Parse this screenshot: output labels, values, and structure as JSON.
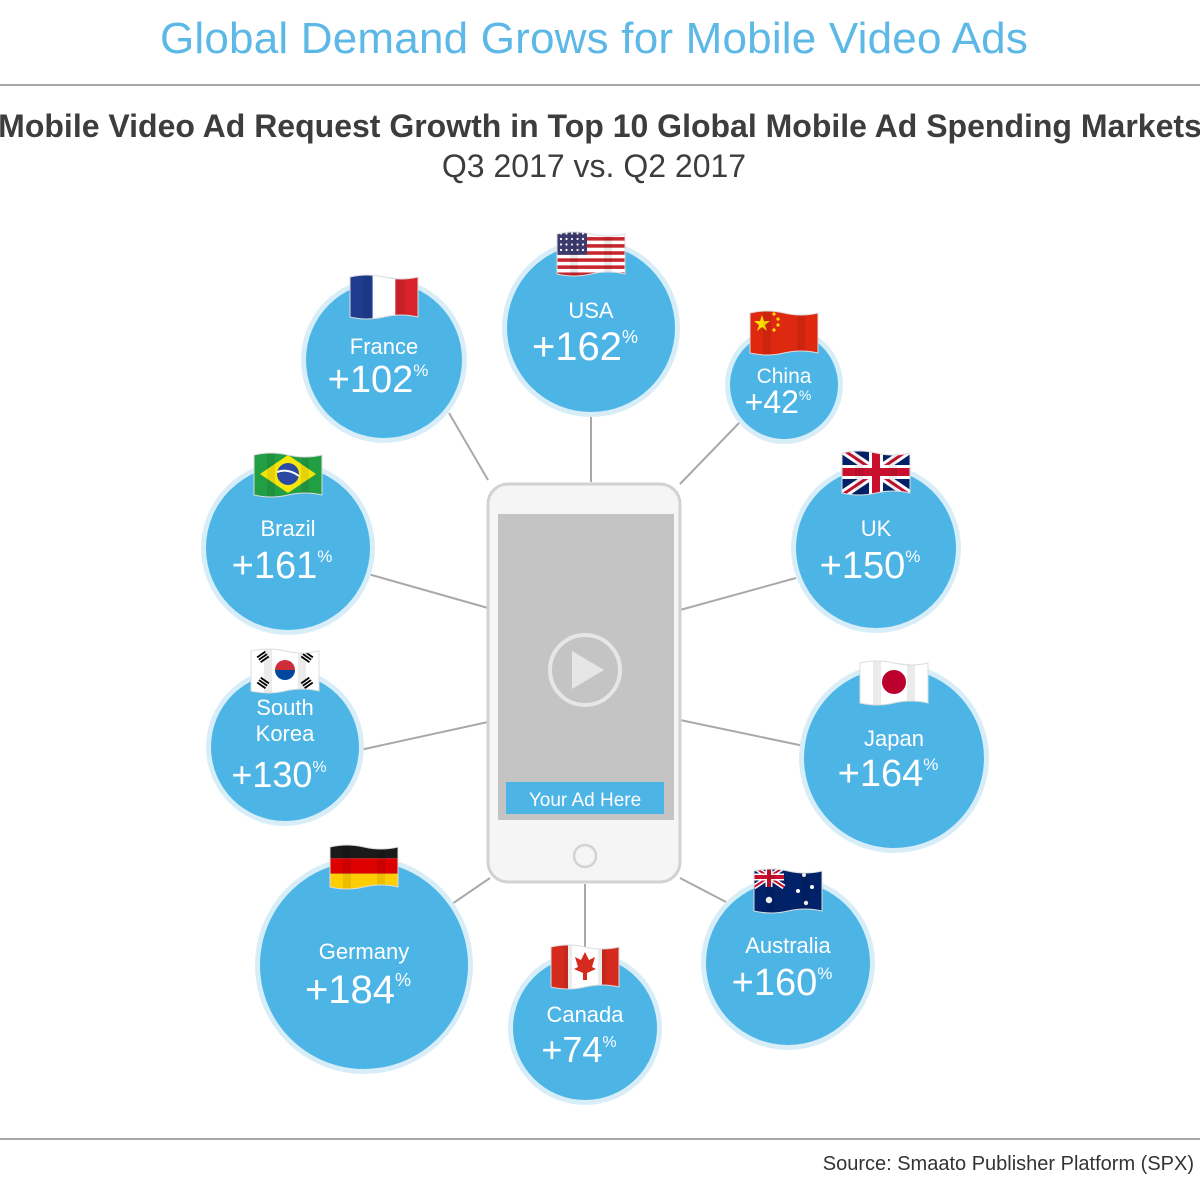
{
  "header": {
    "title": "Global Demand Grows for Mobile Video Ads"
  },
  "chart_data": {
    "type": "bubble",
    "title": "Mobile Video Ad Request Growth in Top 10 Global Mobile Ad Spending Markets",
    "subtitle": "Q3 2017 vs. Q2 2017",
    "unit": "%",
    "countries": [
      {
        "name": "USA",
        "flag": "usa-flag",
        "value": 162,
        "label": "+162"
      },
      {
        "name": "France",
        "flag": "france-flag",
        "value": 102,
        "label": "+102"
      },
      {
        "name": "China",
        "flag": "china-flag",
        "value": 42,
        "label": "+42"
      },
      {
        "name": "Brazil",
        "flag": "brazil-flag",
        "value": 161,
        "label": "+161"
      },
      {
        "name": "UK",
        "flag": "uk-flag",
        "value": 150,
        "label": "+150"
      },
      {
        "name": "South\nKorea",
        "flag": "south-korea-flag",
        "value": 130,
        "label": "+130"
      },
      {
        "name": "Japan",
        "flag": "japan-flag",
        "value": 164,
        "label": "+164"
      },
      {
        "name": "Germany",
        "flag": "germany-flag",
        "value": 184,
        "label": "+184"
      },
      {
        "name": "Canada",
        "flag": "canada-flag",
        "value": 74,
        "label": "+74"
      },
      {
        "name": "Australia",
        "flag": "australia-flag",
        "value": 160,
        "label": "+160"
      }
    ],
    "center": {
      "ad_label": "Your Ad Here",
      "icon": "play-icon"
    }
  },
  "footer": {
    "source": "Source: Smaato Publisher Platform (SPX)"
  },
  "colors": {
    "bubble": "#4db4e6",
    "bubble_ring": "#d7eef9",
    "title": "#5cb8e6",
    "text": "#3d3d3d"
  }
}
